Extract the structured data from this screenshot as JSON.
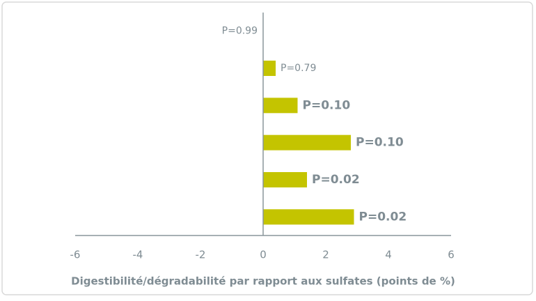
{
  "chart_data": {
    "type": "bar",
    "orientation": "horizontal",
    "x_label": "Digestibilité/dégradabilité par rapport aux sulfates (points de %)",
    "categories": [
      null,
      null,
      null,
      null,
      null,
      null
    ],
    "values": [
      0,
      0.4,
      1.1,
      2.8,
      1.4,
      2.9
    ],
    "bar_labels": [
      "P=0.99",
      "P=0.79",
      "P=0.10",
      "P=0.10",
      "P=0.02",
      "P=0.02"
    ],
    "bold_labels": [
      false,
      false,
      true,
      true,
      true,
      true
    ],
    "color": "#c4c400",
    "xlim": [
      -6,
      6
    ],
    "xticks": [
      -6,
      -4,
      -2,
      0,
      2,
      4,
      6
    ],
    "grid": false
  }
}
